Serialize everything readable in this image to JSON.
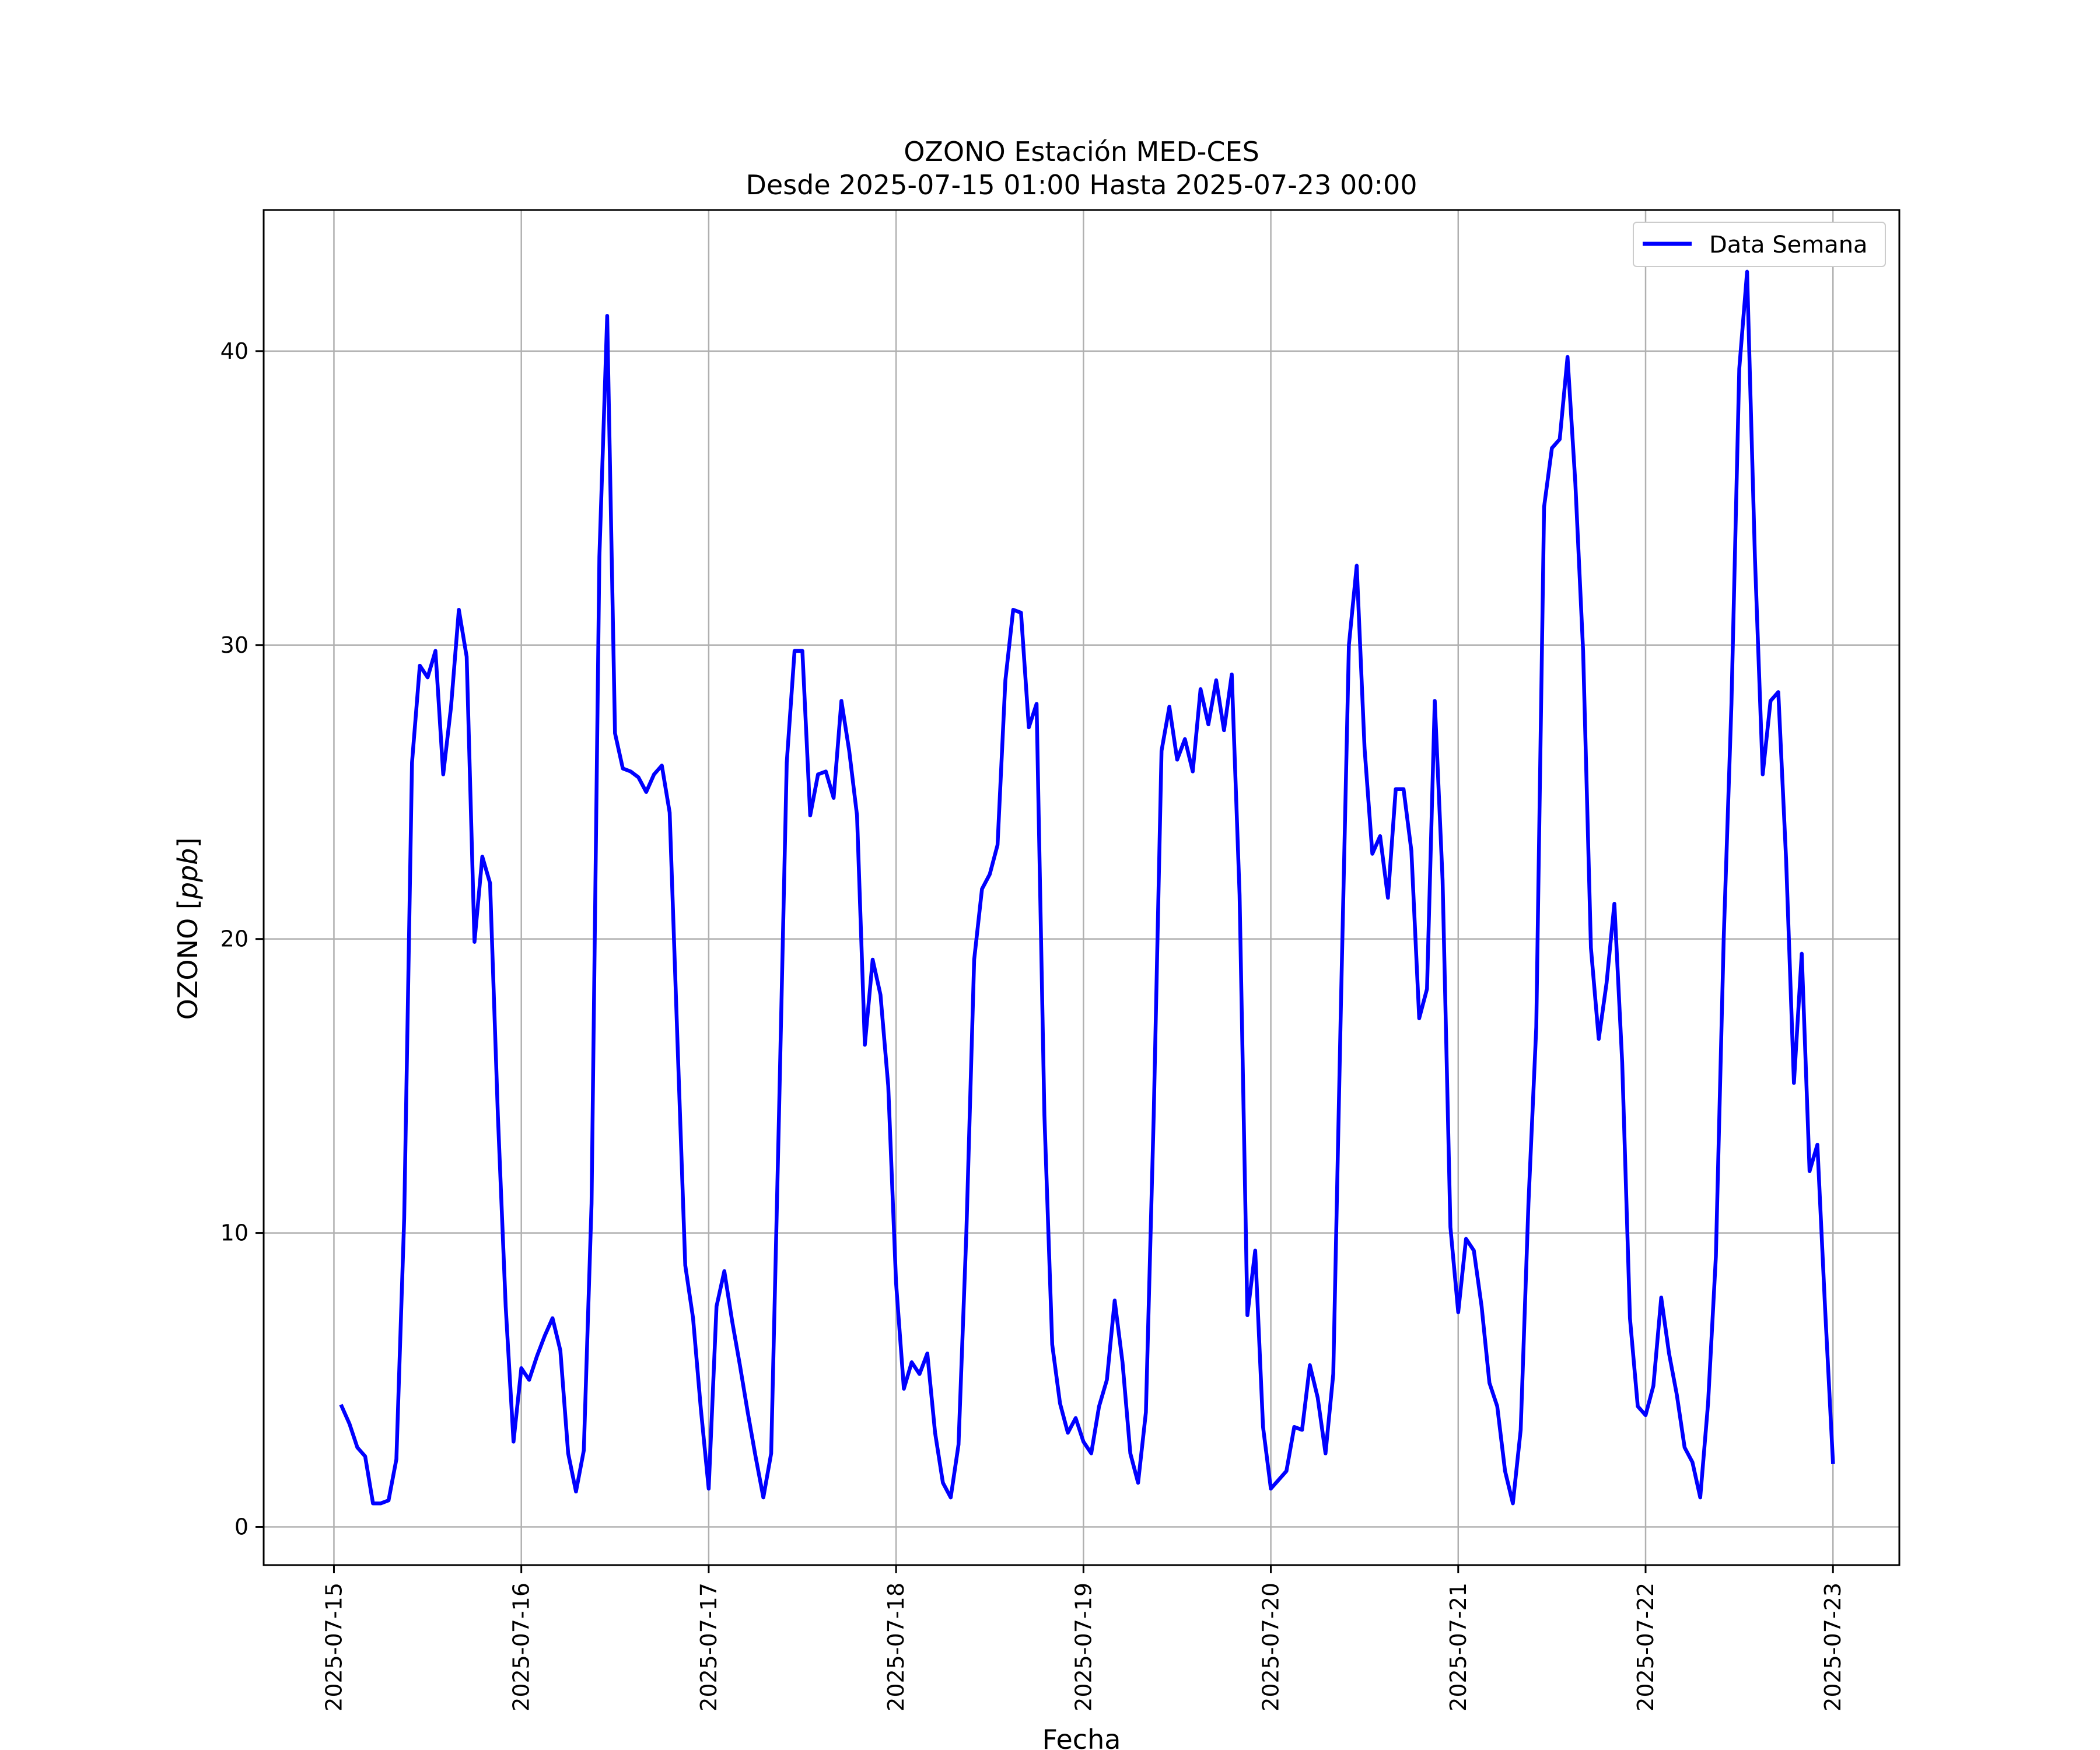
{
  "chart_data": {
    "type": "line",
    "title": "OZONO Estación MED-CES",
    "subtitle": "Desde 2025-07-15 01:00 Hasta 2025-07-23 00:00",
    "xlabel": "Fecha",
    "ylabel_main": "OZONO",
    "ylabel_unit": "ppb",
    "x_ticks": [
      "2025-07-15",
      "2025-07-16",
      "2025-07-17",
      "2025-07-18",
      "2025-07-19",
      "2025-07-20",
      "2025-07-21",
      "2025-07-22",
      "2025-07-23"
    ],
    "y_ticks": [
      0,
      10,
      20,
      30,
      40
    ],
    "xlim": [
      "2025-07-14 15:00",
      "2025-07-23 08:30"
    ],
    "ylim": [
      -1.3,
      44.8
    ],
    "grid": true,
    "legend": "upper-right",
    "series": [
      {
        "name": "Data Semana",
        "color": "#0000ff",
        "start": "2025-07-15 01:00",
        "step_hours": 1,
        "values": [
          4.1,
          3.5,
          2.7,
          2.4,
          0.8,
          0.8,
          0.9,
          2.3,
          10.5,
          26.0,
          29.3,
          28.9,
          29.8,
          25.6,
          27.9,
          31.2,
          29.6,
          19.9,
          22.8,
          21.9,
          14.0,
          7.5,
          2.9,
          5.4,
          5.0,
          5.8,
          6.5,
          7.1,
          6.0,
          2.5,
          1.2,
          2.6,
          11.0,
          33.0,
          41.2,
          27.0,
          25.8,
          25.7,
          25.5,
          25.0,
          25.6,
          25.9,
          24.3,
          16.5,
          8.9,
          7.1,
          4.0,
          1.3,
          7.5,
          8.7,
          7.0,
          5.5,
          3.9,
          2.4,
          1.0,
          2.5,
          14.0,
          26.0,
          29.8,
          29.8,
          24.2,
          25.6,
          25.7,
          24.8,
          28.1,
          26.4,
          24.2,
          16.4,
          19.3,
          18.1,
          15.0,
          8.3,
          4.7,
          5.6,
          5.2,
          5.9,
          3.2,
          1.5,
          1.0,
          2.8,
          10.0,
          19.3,
          21.7,
          22.2,
          23.2,
          28.8,
          31.2,
          31.1,
          27.2,
          28.0,
          14.0,
          6.2,
          4.2,
          3.2,
          3.7,
          2.9,
          2.5,
          4.1,
          5.0,
          7.7,
          5.6,
          2.5,
          1.5,
          3.9,
          14.0,
          26.4,
          27.9,
          26.1,
          26.8,
          25.7,
          28.5,
          27.3,
          28.8,
          27.1,
          29.0,
          21.5,
          7.2,
          9.4,
          3.4,
          1.3,
          1.6,
          1.9,
          3.4,
          3.3,
          5.5,
          4.4,
          2.5,
          5.2,
          18.0,
          30.0,
          32.7,
          26.5,
          22.9,
          23.5,
          21.4,
          25.1,
          25.1,
          23.0,
          17.3,
          18.3,
          28.1,
          22.0,
          10.2,
          7.3,
          9.8,
          9.4,
          7.5,
          4.9,
          4.1,
          1.9,
          0.8,
          3.3,
          11.0,
          17.0,
          34.7,
          36.7,
          37.0,
          39.8,
          35.5,
          29.8,
          19.7,
          16.6,
          18.5,
          21.2,
          15.8,
          7.1,
          4.1,
          3.8,
          4.8,
          7.8,
          5.9,
          4.5,
          2.7,
          2.2,
          1.0,
          4.2,
          9.2,
          20.0,
          28.0,
          39.4,
          42.7,
          33.0,
          25.6,
          28.1,
          28.4,
          22.7,
          15.1,
          19.5,
          12.1,
          13.0,
          7.4,
          2.2
        ]
      }
    ]
  }
}
